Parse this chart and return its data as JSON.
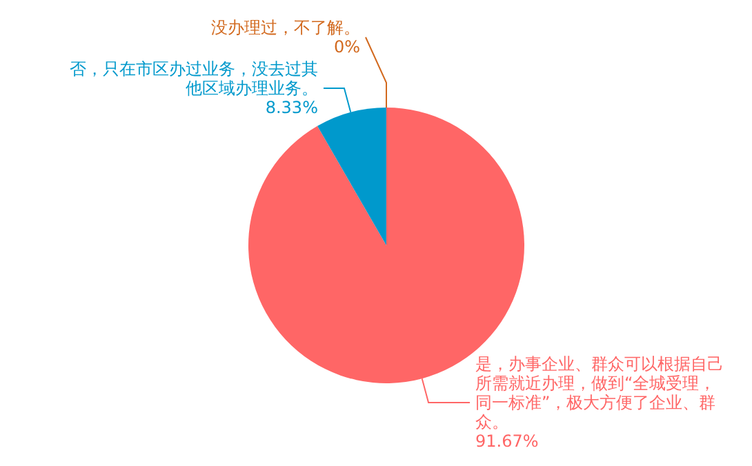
{
  "chart_data": {
    "type": "pie",
    "categories": [
      "是，办事企业、群众可以根据自己所需就近办理，做到“全城受理，同一标准”，极大方便了企业、群众。",
      "否，只在市区办过业务，没去过其他区域办理业务。",
      "没办理过，不了解。"
    ],
    "values": [
      91.67,
      8.33,
      0
    ],
    "colors": [
      "#ff6666",
      "#0099cc",
      "#d2691e"
    ],
    "value_labels": [
      "91.67%",
      "8.33%",
      "0%"
    ]
  }
}
